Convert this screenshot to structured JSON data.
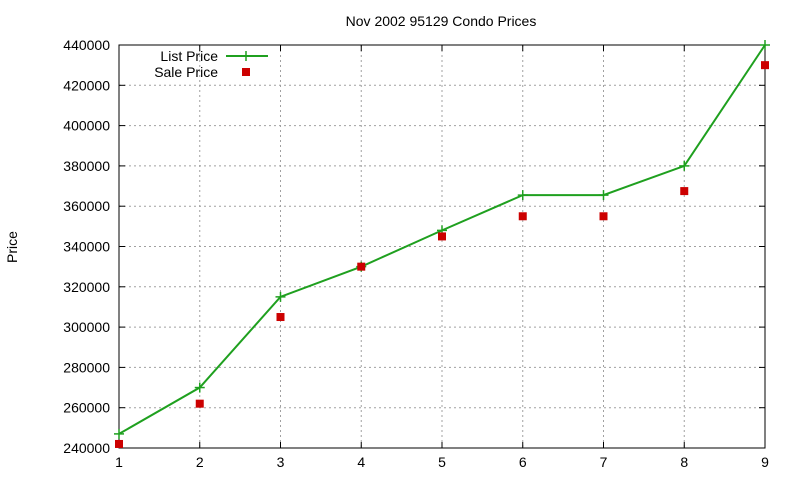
{
  "chart_data": {
    "type": "line",
    "title": "Nov 2002 95129 Condo Prices",
    "xlabel": "",
    "ylabel": "Price",
    "xlim": [
      1,
      9
    ],
    "ylim": [
      240000,
      440000
    ],
    "x_ticks": [
      1,
      2,
      3,
      4,
      5,
      6,
      7,
      8,
      9
    ],
    "y_ticks": [
      240000,
      260000,
      280000,
      300000,
      320000,
      340000,
      360000,
      380000,
      400000,
      420000,
      440000
    ],
    "grid": true,
    "legend_position": "top-left",
    "x": [
      1,
      2,
      3,
      4,
      5,
      6,
      7,
      8,
      9
    ],
    "series": [
      {
        "name": "List Price",
        "style": "linespoints",
        "marker": "plus",
        "color": "#1fa01f",
        "values": [
          247000,
          270000,
          315000,
          330000,
          348000,
          365500,
          365500,
          380000,
          440000
        ]
      },
      {
        "name": "Sale Price",
        "style": "points",
        "marker": "square",
        "color": "#cc0000",
        "values": [
          242000,
          262000,
          305000,
          330000,
          345000,
          355000,
          355000,
          367500,
          430000
        ]
      }
    ]
  }
}
